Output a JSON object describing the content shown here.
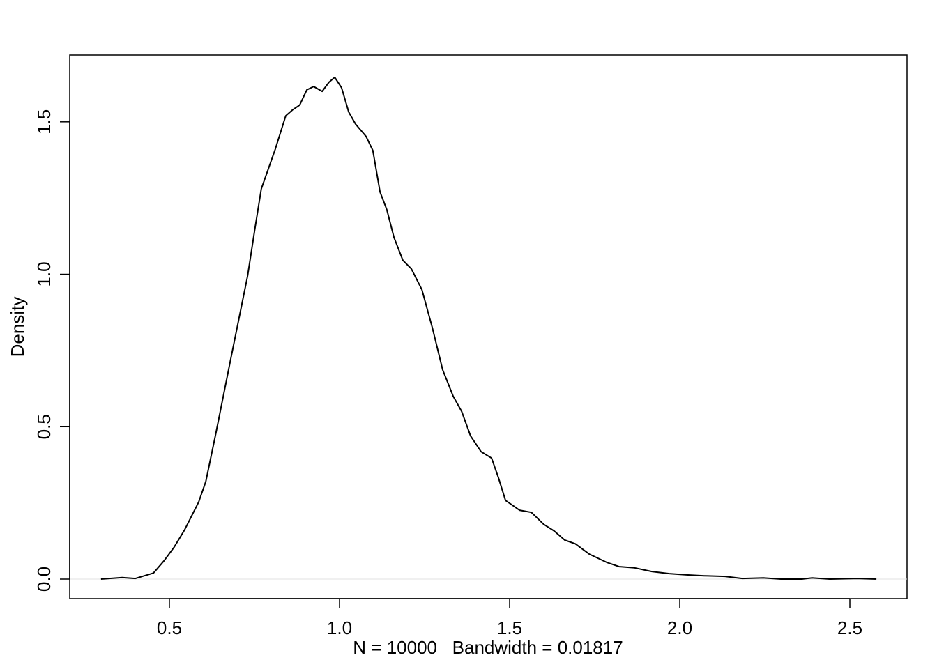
{
  "chart_data": {
    "type": "line",
    "xlabel": "N = 10000   Bandwidth = 0.01817",
    "ylabel": "Density",
    "x": [
      0.299,
      0.361,
      0.4,
      0.453,
      0.484,
      0.514,
      0.545,
      0.586,
      0.607,
      0.637,
      0.678,
      0.709,
      0.73,
      0.75,
      0.77,
      0.811,
      0.842,
      0.863,
      0.883,
      0.904,
      0.924,
      0.949,
      0.969,
      0.986,
      1.006,
      1.027,
      1.047,
      1.078,
      1.098,
      1.119,
      1.139,
      1.16,
      1.186,
      1.211,
      1.242,
      1.273,
      1.303,
      1.334,
      1.359,
      1.385,
      1.416,
      1.447,
      1.467,
      1.488,
      1.529,
      1.564,
      1.6,
      1.631,
      1.662,
      1.693,
      1.734,
      1.785,
      1.822,
      1.867,
      1.918,
      1.969,
      2.02,
      2.072,
      2.133,
      2.184,
      2.246,
      2.297,
      2.359,
      2.389,
      2.441,
      2.522,
      2.578
    ],
    "series": [
      {
        "name": "Density",
        "color": "#000000",
        "values": [
          0,
          0.005,
          0.002,
          0.02,
          0.06,
          0.105,
          0.162,
          0.253,
          0.32,
          0.48,
          0.71,
          0.88,
          0.995,
          1.14,
          1.28,
          1.41,
          1.52,
          1.54,
          1.555,
          1.605,
          1.616,
          1.6,
          1.63,
          1.646,
          1.612,
          1.532,
          1.493,
          1.452,
          1.406,
          1.27,
          1.212,
          1.121,
          1.046,
          1.018,
          0.95,
          0.824,
          0.687,
          0.6,
          0.55,
          0.47,
          0.418,
          0.397,
          0.333,
          0.258,
          0.226,
          0.219,
          0.18,
          0.158,
          0.128,
          0.116,
          0.082,
          0.055,
          0.041,
          0.037,
          0.025,
          0.018,
          0.014,
          0.011,
          0.009,
          0.002,
          0.004,
          0,
          0,
          0.004,
          0,
          0.002,
          0
        ]
      }
    ],
    "xlim": [
      0.207,
      2.668
    ],
    "ylim": [
      -0.064,
      1.719
    ],
    "xticks": [
      0.5,
      {
        "value": 1,
        "label": "1.0"
      },
      1.5,
      {
        "value": 2,
        "label": "2.0"
      },
      2.5
    ],
    "yticks": [
      {
        "value": 0,
        "label": "0.0"
      },
      0.5,
      {
        "value": 1,
        "label": "1.0"
      },
      1.5
    ],
    "zero_line": true
  }
}
